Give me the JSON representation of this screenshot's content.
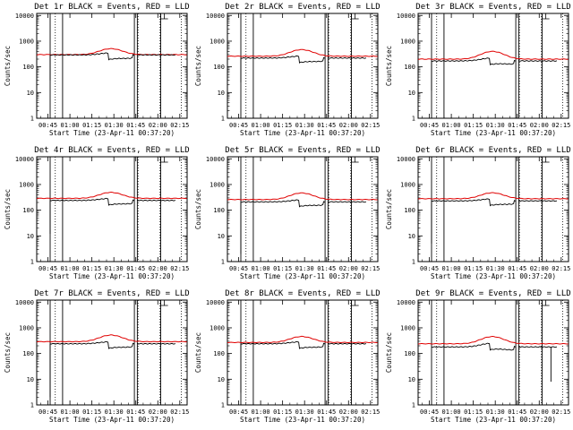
{
  "colors": {
    "events": "#000000",
    "lld": "#e00000",
    "background": "#ffffff"
  },
  "axis_common": {
    "ylabel": "Counts/sec",
    "xlabel": "Start Time (23-Apr-11 00:37:20)",
    "y_ticks": [
      "1",
      "10",
      "100",
      "1000",
      "10000"
    ],
    "x_ticks": [
      "00:45",
      "01:00",
      "01:15",
      "01:30",
      "01:45",
      "02:00",
      "02:15"
    ],
    "x_tick_minutes": [
      45,
      60,
      75,
      90,
      105,
      120,
      135
    ],
    "x_range_min": [
      37.33,
      140
    ],
    "y_range": [
      1,
      12000
    ],
    "y_scale": "log"
  },
  "chart_data": [
    {
      "type": "line",
      "title": "Det 1r BLACK = Events, RED = LLD",
      "series": [
        {
          "name": "Events",
          "base": 290,
          "dip_low": 30,
          "dip_time": 46.5,
          "bump": 1.2,
          "drop": 0.55,
          "sawtooth": true
        },
        {
          "name": "LLD",
          "base": 300,
          "bump": 1.7
        }
      ],
      "vlines_solid": [
        46.5,
        55,
        104,
        106,
        122
      ],
      "vlines_dotted": [
        50,
        106.5,
        121.5,
        136
      ]
    },
    {
      "type": "line",
      "title": "Det 2r BLACK = Events, RED = LLD",
      "series": [
        {
          "name": "Events",
          "base": 220,
          "dip_low": 25,
          "dip_time": 46.5,
          "bump": 1.2,
          "drop": 0.55,
          "sawtooth": true
        },
        {
          "name": "LLD",
          "base": 260,
          "bump": 1.8
        }
      ],
      "vlines_solid": [
        46.5,
        55,
        104,
        106,
        122
      ],
      "vlines_dotted": [
        50,
        106.5,
        121.5,
        136
      ]
    },
    {
      "type": "line",
      "title": "Det 3r BLACK = Events, RED = LLD",
      "series": [
        {
          "name": "Events",
          "base": 170,
          "dip_low": 12,
          "dip_time": 46.5,
          "bump": 1.3,
          "drop": 0.55,
          "sawtooth": true
        },
        {
          "name": "LLD",
          "base": 200,
          "bump": 2.0
        }
      ],
      "vlines_solid": [
        46.5,
        55,
        104,
        106,
        122
      ],
      "vlines_dotted": [
        50,
        106.5,
        121.5,
        136
      ]
    },
    {
      "type": "line",
      "title": "Det 4r BLACK = Events, RED = LLD",
      "series": [
        {
          "name": "Events",
          "base": 240,
          "dip_low": 12,
          "dip_time": 46.5,
          "bump": 1.2,
          "drop": 0.55,
          "sawtooth": true
        },
        {
          "name": "LLD",
          "base": 290,
          "bump": 1.7
        }
      ],
      "vlines_solid": [
        46.5,
        55,
        104,
        106,
        122
      ],
      "vlines_dotted": [
        50,
        106.5,
        121.5,
        136
      ]
    },
    {
      "type": "line",
      "title": "Det 5r BLACK = Events, RED = LLD",
      "series": [
        {
          "name": "Events",
          "base": 210,
          "dip_low": 2,
          "dip_time": 46.5,
          "bump": 1.2,
          "drop": 0.55,
          "sawtooth": true
        },
        {
          "name": "LLD",
          "base": 260,
          "bump": 1.8
        }
      ],
      "vlines_solid": [
        46.5,
        55,
        104,
        106,
        122
      ],
      "vlines_dotted": [
        50,
        106.5,
        121.5,
        136
      ]
    },
    {
      "type": "line",
      "title": "Det 6r BLACK = Events, RED = LLD",
      "series": [
        {
          "name": "Events",
          "base": 230,
          "dip_low": 5,
          "dip_time": 46.5,
          "bump": 1.2,
          "drop": 0.55,
          "sawtooth": true
        },
        {
          "name": "LLD",
          "base": 280,
          "bump": 1.7
        }
      ],
      "vlines_solid": [
        46.5,
        55,
        104,
        106,
        122
      ],
      "vlines_dotted": [
        50,
        106.5,
        121.5,
        136
      ]
    },
    {
      "type": "line",
      "title": "Det 7r BLACK = Events, RED = LLD",
      "series": [
        {
          "name": "Events",
          "base": 240,
          "dip_low": 2,
          "dip_time": 46.5,
          "bump": 1.2,
          "drop": 0.55,
          "sawtooth": true
        },
        {
          "name": "LLD",
          "base": 290,
          "bump": 1.8
        }
      ],
      "vlines_solid": [
        46.5,
        55,
        104,
        106,
        122
      ],
      "vlines_dotted": [
        50,
        106.5,
        121.5,
        136
      ]
    },
    {
      "type": "line",
      "title": "Det 8r BLACK = Events, RED = LLD",
      "series": [
        {
          "name": "Events",
          "base": 240,
          "dip_low": 3,
          "dip_time": 46.5,
          "bump": 1.2,
          "drop": 0.55,
          "sawtooth": true
        },
        {
          "name": "LLD",
          "base": 270,
          "bump": 1.7
        }
      ],
      "vlines_solid": [
        46.5,
        55,
        104,
        106,
        122
      ],
      "vlines_dotted": [
        50,
        106.5,
        121.5,
        136
      ]
    },
    {
      "type": "line",
      "title": "Det 9r BLACK = Events, RED = LLD",
      "series": [
        {
          "name": "Events",
          "base": 180,
          "dip_low": 8,
          "dip_time": 128,
          "bump": 1.4,
          "drop": 0.55,
          "sawtooth": true
        },
        {
          "name": "LLD",
          "base": 240,
          "bump": 1.9
        }
      ],
      "vlines_solid": [
        46.5,
        55,
        104,
        106,
        122
      ],
      "vlines_dotted": [
        50,
        106.5,
        121.5,
        136
      ]
    }
  ]
}
